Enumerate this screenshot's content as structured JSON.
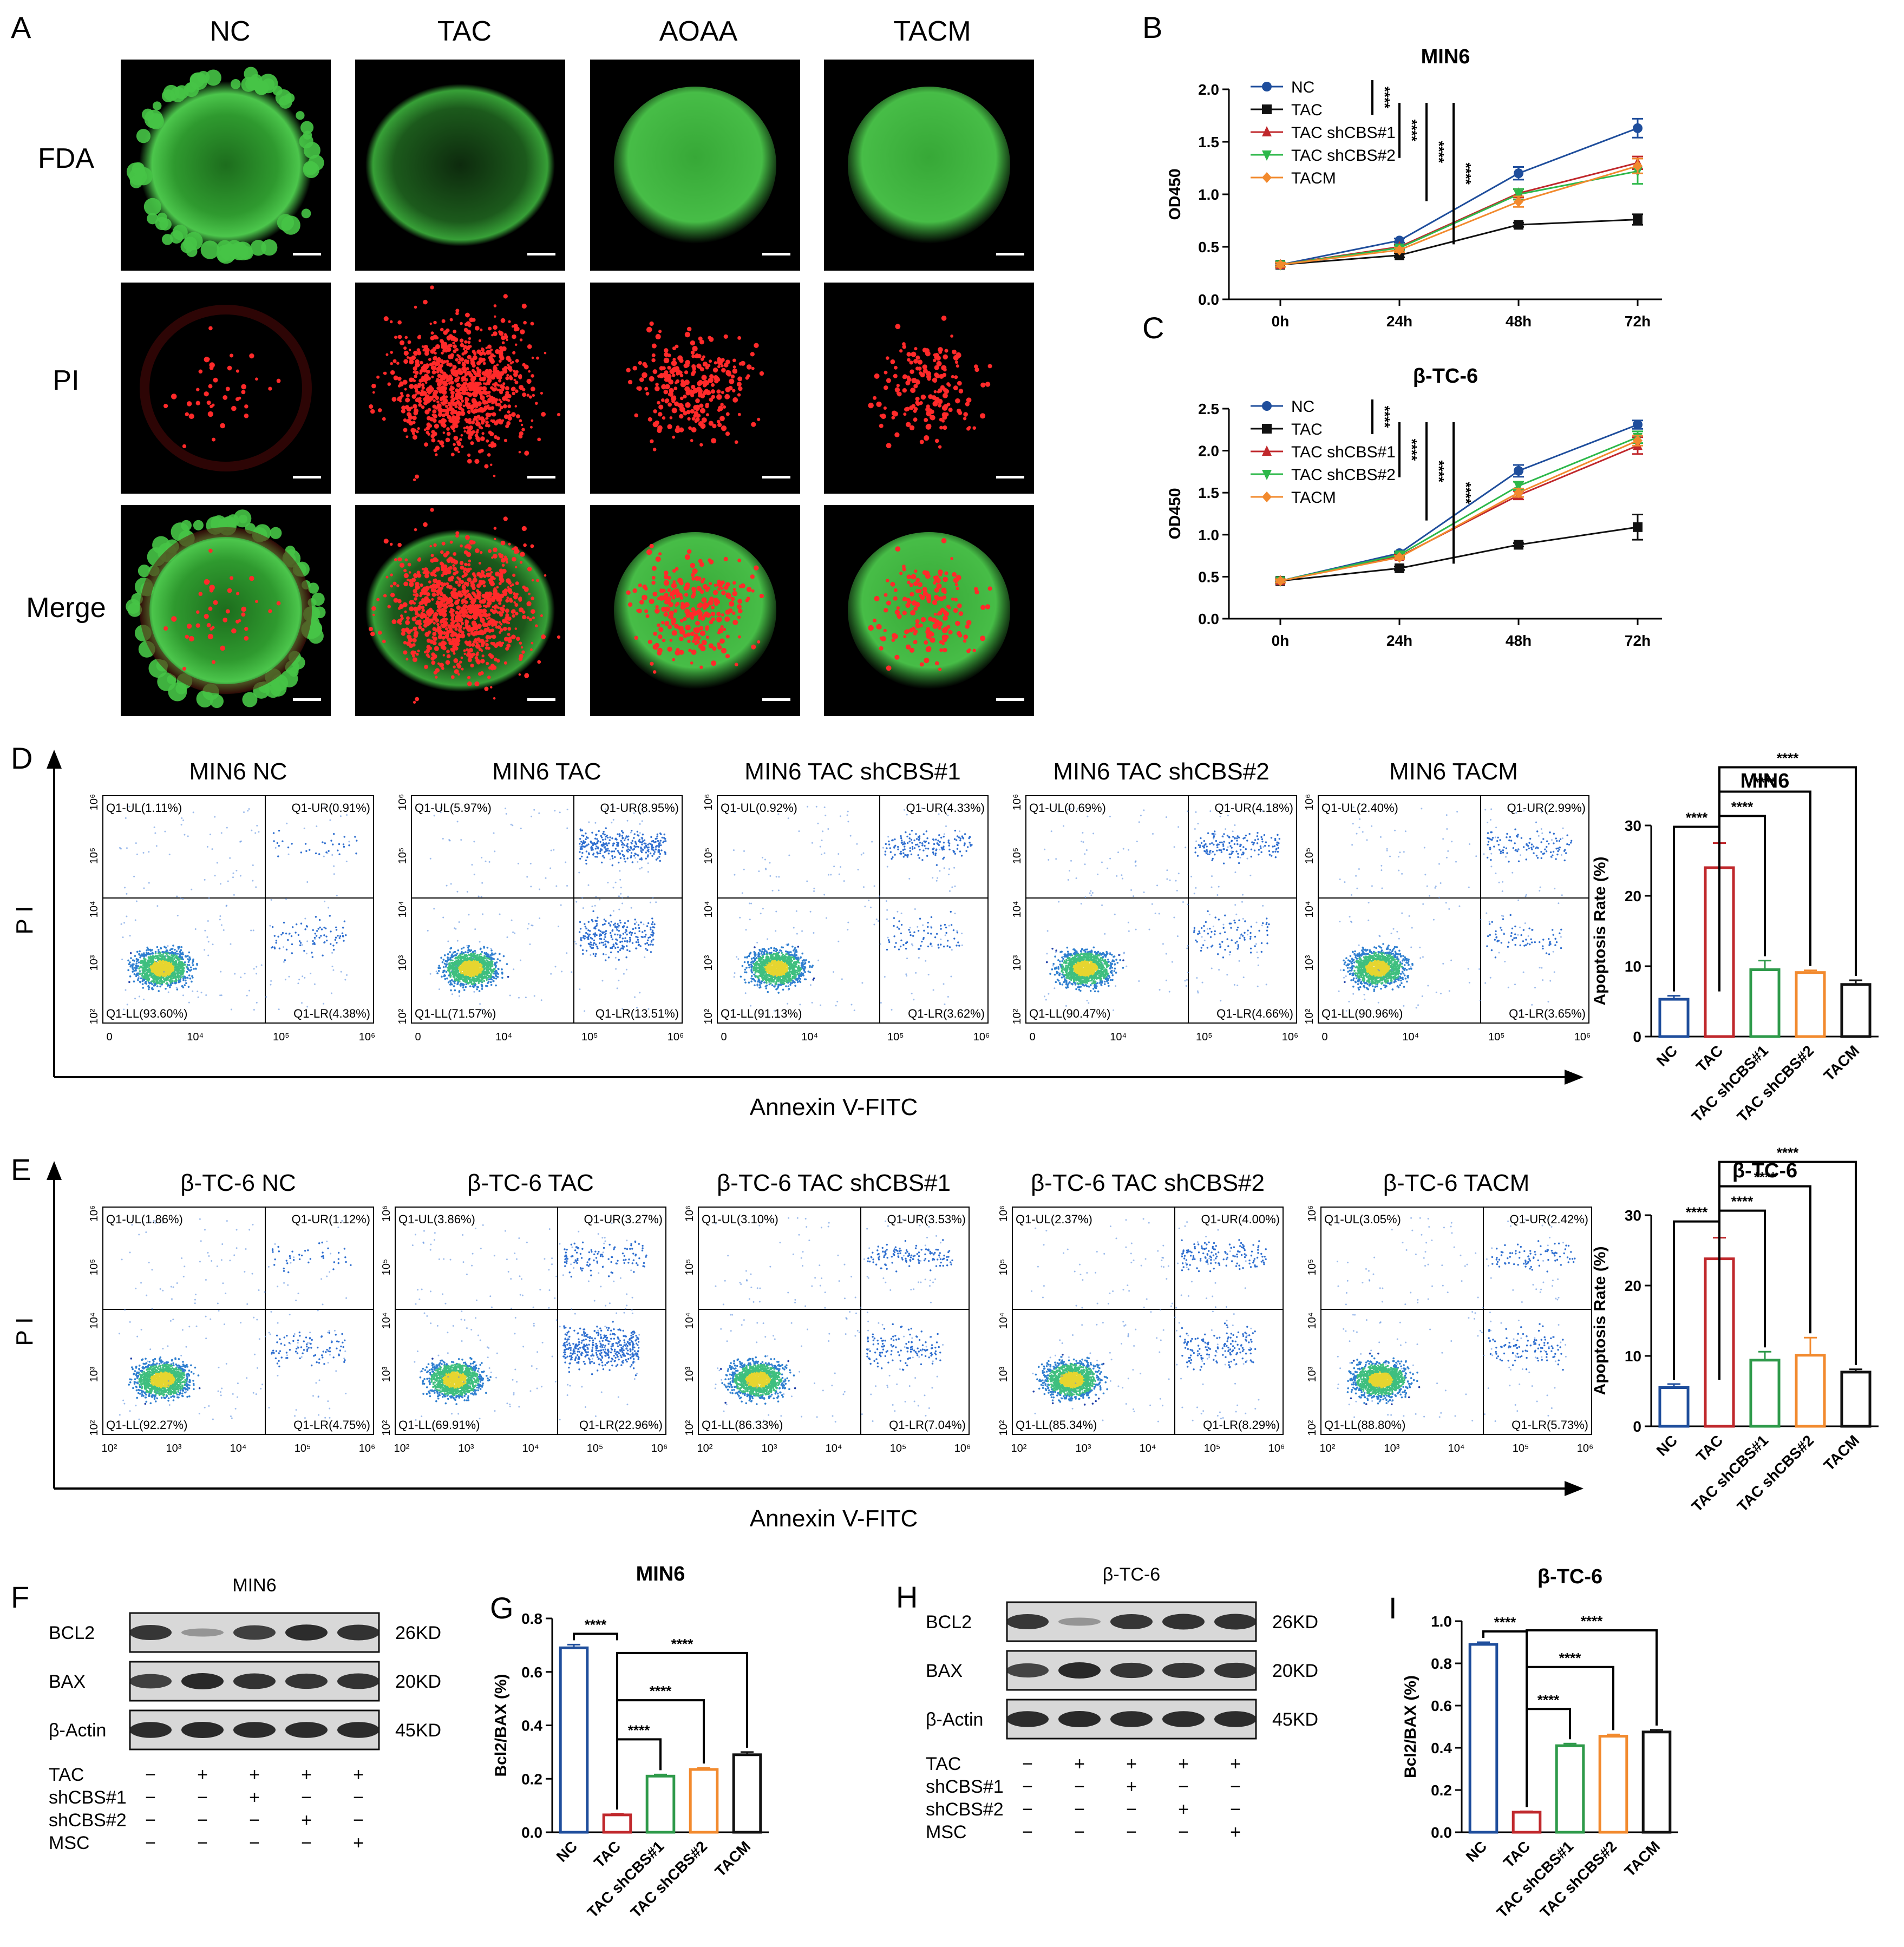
{
  "panel_letters": {
    "A": "A",
    "B": "B",
    "C": "C",
    "D": "D",
    "E": "E",
    "F": "F",
    "G": "G",
    "H": "H",
    "I": "I"
  },
  "panel_a": {
    "columns": [
      "NC",
      "TAC",
      "AOAA",
      "TACM"
    ],
    "rows": [
      "FDA",
      "PI",
      "Merge"
    ]
  },
  "chart_data": [
    {
      "id": "B",
      "type": "line",
      "title": "MIN6",
      "xlabel": "",
      "ylabel": "OD450",
      "categories": [
        "0h",
        "24h",
        "48h",
        "72h"
      ],
      "ylim": [
        0,
        2.0
      ],
      "yticks": [
        "0.0",
        "0.5",
        "1.0",
        "1.5",
        "2.0"
      ],
      "series": [
        {
          "name": "NC",
          "values": [
            0.33,
            0.56,
            1.2,
            1.63
          ],
          "err": [
            0.02,
            0.02,
            0.06,
            0.09
          ],
          "color": "#1f4e9c",
          "marker": "circle"
        },
        {
          "name": "TAC",
          "values": [
            0.33,
            0.42,
            0.71,
            0.76
          ],
          "err": [
            0.02,
            0.02,
            0.02,
            0.05
          ],
          "color": "#111111",
          "marker": "square"
        },
        {
          "name": "TAC shCBS#1",
          "values": [
            0.33,
            0.5,
            1.01,
            1.3
          ],
          "err": [
            0.02,
            0.02,
            0.04,
            0.06
          ],
          "color": "#c0282c",
          "marker": "triangle"
        },
        {
          "name": "TAC shCBS#2",
          "values": [
            0.33,
            0.49,
            1.0,
            1.22
          ],
          "err": [
            0.02,
            0.02,
            0.05,
            0.12
          ],
          "color": "#2db84a",
          "marker": "triangle-down"
        },
        {
          "name": "TACM",
          "values": [
            0.33,
            0.47,
            0.93,
            1.27
          ],
          "err": [
            0.02,
            0.02,
            0.05,
            0.07
          ],
          "color": "#f28a2e",
          "marker": "diamond"
        }
      ],
      "significance": [
        "****",
        "****",
        "****",
        "****"
      ],
      "legend": "top-left"
    },
    {
      "id": "C",
      "type": "line",
      "title": "β-TC-6",
      "xlabel": "",
      "ylabel": "OD450",
      "categories": [
        "0h",
        "24h",
        "48h",
        "72h"
      ],
      "ylim": [
        0,
        2.5
      ],
      "yticks": [
        "0.0",
        "0.5",
        "1.0",
        "1.5",
        "2.0",
        "2.5"
      ],
      "series": [
        {
          "name": "NC",
          "values": [
            0.45,
            0.78,
            1.76,
            2.31
          ],
          "err": [
            0.02,
            0.02,
            0.07,
            0.05
          ],
          "color": "#1f4e9c",
          "marker": "circle"
        },
        {
          "name": "TAC",
          "values": [
            0.45,
            0.6,
            0.88,
            1.09
          ],
          "err": [
            0.02,
            0.02,
            0.02,
            0.15
          ],
          "color": "#111111",
          "marker": "square"
        },
        {
          "name": "TAC shCBS#1",
          "values": [
            0.45,
            0.74,
            1.47,
            2.06
          ],
          "err": [
            0.02,
            0.02,
            0.05,
            0.1
          ],
          "color": "#c0282c",
          "marker": "triangle"
        },
        {
          "name": "TAC shCBS#2",
          "values": [
            0.45,
            0.76,
            1.58,
            2.16
          ],
          "err": [
            0.02,
            0.02,
            0.05,
            0.07
          ],
          "color": "#2db84a",
          "marker": "triangle-down"
        },
        {
          "name": "TACM",
          "values": [
            0.45,
            0.73,
            1.5,
            2.12
          ],
          "err": [
            0.02,
            0.02,
            0.05,
            0.06
          ],
          "color": "#f28a2e",
          "marker": "diamond"
        }
      ],
      "significance": [
        "****",
        "****",
        "****",
        "****"
      ],
      "legend": "top-left"
    },
    {
      "id": "D_bar",
      "type": "bar",
      "title": "MIN6",
      "ylabel": "Apoptosis Rate (%)",
      "categories": [
        "NC",
        "TAC",
        "TAC shCBS#1",
        "TAC shCBS#2",
        "TACM"
      ],
      "values": [
        5.3,
        24.0,
        9.5,
        9.1,
        7.4
      ],
      "err": [
        0.5,
        3.5,
        1.3,
        0.3,
        0.6
      ],
      "colors": [
        "#1f4e9c",
        "#c0282c",
        "#2e9a4a",
        "#f28a2e",
        "#111111"
      ],
      "ylim": [
        0,
        30
      ],
      "yticks": [
        "0",
        "10",
        "20",
        "30"
      ],
      "significance": [
        "****",
        "****",
        "****",
        "****"
      ]
    },
    {
      "id": "E_bar",
      "type": "bar",
      "title": "β-TC-6",
      "ylabel": "Apoptosis Rate (%)",
      "categories": [
        "NC",
        "TAC",
        "TAC shCBS#1",
        "TAC shCBS#2",
        "TACM"
      ],
      "values": [
        5.5,
        23.8,
        9.4,
        10.1,
        7.7
      ],
      "err": [
        0.5,
        3.0,
        1.2,
        2.5,
        0.4
      ],
      "colors": [
        "#1f4e9c",
        "#c0282c",
        "#2e9a4a",
        "#f28a2e",
        "#111111"
      ],
      "ylim": [
        0,
        30
      ],
      "yticks": [
        "0",
        "10",
        "20",
        "30"
      ],
      "significance": [
        "****",
        "****",
        "****",
        "****"
      ]
    },
    {
      "id": "G",
      "type": "bar",
      "title": "MIN6",
      "ylabel": "Bcl2/BAX (%)",
      "categories": [
        "NC",
        "TAC",
        "TAC shCBS#1",
        "TAC shCBS#2",
        "TACM"
      ],
      "values": [
        0.69,
        0.065,
        0.21,
        0.235,
        0.29
      ],
      "err": [
        0.012,
        0.004,
        0.006,
        0.006,
        0.01
      ],
      "colors": [
        "#1f4e9c",
        "#c0282c",
        "#2e9a4a",
        "#f28a2e",
        "#111111"
      ],
      "ylim": [
        0,
        0.8
      ],
      "yticks": [
        "0.0",
        "0.2",
        "0.4",
        "0.6",
        "0.8"
      ],
      "significance": [
        "****",
        "****",
        "****",
        "****"
      ]
    },
    {
      "id": "I",
      "type": "bar",
      "title": "β-TC-6",
      "ylabel": "Bcl2/BAX (%)",
      "categories": [
        "NC",
        "TAC",
        "TAC shCBS#1",
        "TAC shCBS#2",
        "TACM"
      ],
      "values": [
        0.89,
        0.095,
        0.41,
        0.455,
        0.475
      ],
      "err": [
        0.01,
        0.004,
        0.01,
        0.008,
        0.01
      ],
      "colors": [
        "#1f4e9c",
        "#c0282c",
        "#2e9a4a",
        "#f28a2e",
        "#111111"
      ],
      "ylim": [
        0,
        1.0
      ],
      "yticks": [
        "0.0",
        "0.2",
        "0.4",
        "0.6",
        "0.8",
        "1.0"
      ],
      "significance": [
        "****",
        "****",
        "****",
        "****"
      ]
    }
  ],
  "flow_d": {
    "y_axis": "P I",
    "x_axis": "Annexin V-FITC",
    "plots": [
      {
        "title": "MIN6 NC",
        "ul": "Q1-UL(1.11%)",
        "ur": "Q1-UR(0.91%)",
        "ll": "Q1-LL(93.60%)",
        "lr": "Q1-LR(4.38%)",
        "ur_pct": 0.91,
        "lr_pct": 4.38
      },
      {
        "title": "MIN6 TAC",
        "ul": "Q1-UL(5.97%)",
        "ur": "Q1-UR(8.95%)",
        "ll": "Q1-LL(71.57%)",
        "lr": "Q1-LR(13.51%)",
        "ur_pct": 8.95,
        "lr_pct": 13.51
      },
      {
        "title": "MIN6 TAC shCBS#1",
        "ul": "Q1-UL(0.92%)",
        "ur": "Q1-UR(4.33%)",
        "ll": "Q1-LL(91.13%)",
        "lr": "Q1-LR(3.62%)",
        "ur_pct": 4.33,
        "lr_pct": 3.62
      },
      {
        "title": "MIN6 TAC shCBS#2",
        "ul": "Q1-UL(0.69%)",
        "ur": "Q1-UR(4.18%)",
        "ll": "Q1-LL(90.47%)",
        "lr": "Q1-LR(4.66%)",
        "ur_pct": 4.18,
        "lr_pct": 4.66
      },
      {
        "title": "MIN6 TACM",
        "ul": "Q1-UL(2.40%)",
        "ur": "Q1-UR(2.99%)",
        "ll": "Q1-LL(90.96%)",
        "lr": "Q1-LR(3.65%)",
        "ur_pct": 2.99,
        "lr_pct": 3.65
      }
    ]
  },
  "flow_e": {
    "y_axis": "P I",
    "x_axis": "Annexin V-FITC",
    "plots": [
      {
        "title": "β-TC-6 NC",
        "ul": "Q1-UL(1.86%)",
        "ur": "Q1-UR(1.12%)",
        "ll": "Q1-LL(92.27%)",
        "lr": "Q1-LR(4.75%)",
        "ur_pct": 1.12,
        "lr_pct": 4.75
      },
      {
        "title": "β-TC-6 TAC",
        "ul": "Q1-UL(3.86%)",
        "ur": "Q1-UR(3.27%)",
        "ll": "Q1-LL(69.91%)",
        "lr": "Q1-LR(22.96%)",
        "ur_pct": 3.27,
        "lr_pct": 22.96
      },
      {
        "title": "β-TC-6 TAC shCBS#1",
        "ul": "Q1-UL(3.10%)",
        "ur": "Q1-UR(3.53%)",
        "ll": "Q1-LL(86.33%)",
        "lr": "Q1-LR(7.04%)",
        "ur_pct": 3.53,
        "lr_pct": 7.04
      },
      {
        "title": "β-TC-6 TAC shCBS#2",
        "ul": "Q1-UL(2.37%)",
        "ur": "Q1-UR(4.00%)",
        "ll": "Q1-LL(85.34%)",
        "lr": "Q1-LR(8.29%)",
        "ur_pct": 4.0,
        "lr_pct": 8.29
      },
      {
        "title": "β-TC-6 TACM",
        "ul": "Q1-UL(3.05%)",
        "ur": "Q1-UR(2.42%)",
        "ll": "Q1-LL(88.80%)",
        "lr": "Q1-LR(5.73%)",
        "ur_pct": 2.42,
        "lr_pct": 5.73
      }
    ]
  },
  "western_f": {
    "title": "MIN6",
    "bands": [
      {
        "label": "BCL2",
        "size": "26KD",
        "intensity": [
          0.85,
          0.35,
          0.8,
          0.9,
          0.88
        ]
      },
      {
        "label": "BAX",
        "size": "20KD",
        "intensity": [
          0.8,
          0.92,
          0.88,
          0.86,
          0.88
        ]
      },
      {
        "label": "β-Actin",
        "size": "45KD",
        "intensity": [
          0.9,
          0.92,
          0.9,
          0.9,
          0.9
        ]
      }
    ],
    "conditions": [
      {
        "label": "TAC",
        "signs": [
          "−",
          "+",
          "+",
          "+",
          "+"
        ]
      },
      {
        "label": "shCBS#1",
        "signs": [
          "−",
          "−",
          "+",
          "−",
          "−"
        ]
      },
      {
        "label": "shCBS#2",
        "signs": [
          "−",
          "−",
          "−",
          "+",
          "−"
        ]
      },
      {
        "label": "MSC",
        "signs": [
          "−",
          "−",
          "−",
          "−",
          "+"
        ]
      }
    ]
  },
  "western_h": {
    "title": "β-TC-6",
    "bands": [
      {
        "label": "BCL2",
        "size": "26KD",
        "intensity": [
          0.85,
          0.35,
          0.85,
          0.88,
          0.88
        ]
      },
      {
        "label": "BAX",
        "size": "20KD",
        "intensity": [
          0.78,
          0.92,
          0.86,
          0.86,
          0.86
        ]
      },
      {
        "label": "β-Actin",
        "size": "45KD",
        "intensity": [
          0.9,
          0.92,
          0.9,
          0.9,
          0.9
        ]
      }
    ],
    "conditions": [
      {
        "label": "TAC",
        "signs": [
          "−",
          "+",
          "+",
          "+",
          "+"
        ]
      },
      {
        "label": "shCBS#1",
        "signs": [
          "−",
          "−",
          "+",
          "−",
          "−"
        ]
      },
      {
        "label": "shCBS#2",
        "signs": [
          "−",
          "−",
          "−",
          "+",
          "−"
        ]
      },
      {
        "label": "MSC",
        "signs": [
          "−",
          "−",
          "−",
          "−",
          "+"
        ]
      }
    ]
  }
}
